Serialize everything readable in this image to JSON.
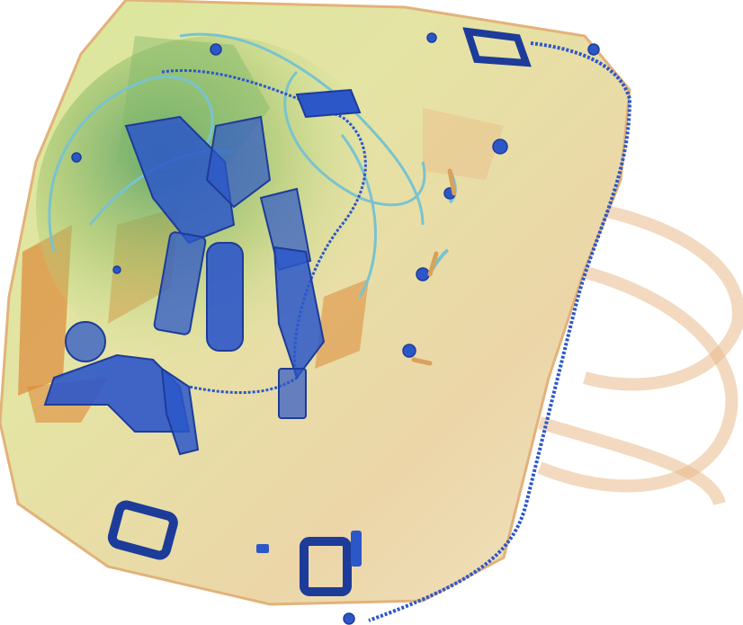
{
  "scan": {
    "subject": "x-ray-bag-scan",
    "palette": {
      "background": "#ffffff",
      "organic": "#e7a35c",
      "organic_dark": "#dd8a3a",
      "mixed": "#c9df8f",
      "mixed_dark": "#9fc36b",
      "dense": "#2c57c9",
      "dense_dark": "#1d3c99",
      "cyan": "#79c3cf"
    }
  }
}
